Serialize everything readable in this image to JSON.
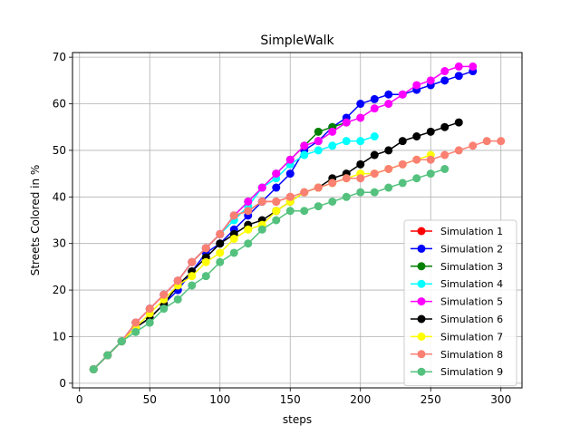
{
  "chart_data": {
    "type": "line",
    "title": "SimpleWalk",
    "xlabel": "steps",
    "ylabel": "Streets Colored in %",
    "xlim": [
      -5,
      315
    ],
    "ylim": [
      -1,
      71
    ],
    "xticks": [
      0,
      50,
      100,
      150,
      200,
      250,
      300
    ],
    "yticks": [
      0,
      10,
      20,
      30,
      40,
      50,
      60,
      70
    ],
    "grid": true,
    "legend_position": "lower right",
    "series": [
      {
        "name": "Simulation 1",
        "color": "#ff0000",
        "x": [
          10,
          20,
          30,
          40,
          50,
          60,
          70,
          80,
          90,
          100,
          110,
          120,
          130,
          140,
          150
        ],
        "y": [
          3,
          6,
          9,
          13,
          16,
          19,
          22,
          26,
          29,
          32,
          36,
          37,
          39,
          39,
          40
        ]
      },
      {
        "name": "Simulation 2",
        "color": "#0000ff",
        "x": [
          10,
          20,
          30,
          40,
          50,
          60,
          70,
          80,
          90,
          100,
          110,
          120,
          130,
          140,
          150,
          160,
          170,
          180,
          190,
          200,
          210,
          220,
          230,
          240,
          250,
          260,
          270,
          280
        ],
        "y": [
          3,
          6,
          9,
          12,
          14,
          17,
          20,
          24,
          28,
          30,
          33,
          36,
          39,
          42,
          45,
          50,
          52,
          55,
          57,
          60,
          61,
          62,
          62,
          63,
          64,
          65,
          66,
          67
        ]
      },
      {
        "name": "Simulation 3",
        "color": "#008000",
        "x": [
          10,
          20,
          30,
          40,
          50,
          60,
          70,
          80,
          90,
          100,
          110,
          120,
          130,
          140,
          150,
          160,
          170,
          180,
          190
        ],
        "y": [
          3,
          6,
          9,
          13,
          16,
          19,
          22,
          26,
          29,
          32,
          36,
          39,
          42,
          45,
          48,
          51,
          54,
          55,
          56
        ]
      },
      {
        "name": "Simulation 4",
        "color": "#00ffff",
        "x": [
          10,
          20,
          30,
          40,
          50,
          60,
          70,
          80,
          90,
          100,
          110,
          120,
          130,
          140,
          150,
          160,
          170,
          180,
          190,
          200,
          210
        ],
        "y": [
          3,
          6,
          9,
          13,
          16,
          19,
          22,
          26,
          29,
          32,
          35,
          38,
          42,
          44,
          47,
          49,
          50,
          51,
          52,
          52,
          53
        ]
      },
      {
        "name": "Simulation 5",
        "color": "#ff00ff",
        "x": [
          10,
          20,
          30,
          40,
          50,
          60,
          70,
          80,
          90,
          100,
          110,
          120,
          130,
          140,
          150,
          160,
          170,
          180,
          190,
          200,
          210,
          220,
          230,
          240,
          250,
          260,
          270,
          280
        ],
        "y": [
          3,
          6,
          9,
          13,
          16,
          19,
          22,
          26,
          29,
          32,
          36,
          39,
          42,
          45,
          48,
          51,
          52,
          54,
          56,
          57,
          59,
          60,
          62,
          64,
          65,
          67,
          68,
          68
        ]
      },
      {
        "name": "Simulation 6",
        "color": "#000000",
        "x": [
          10,
          20,
          30,
          40,
          50,
          60,
          70,
          80,
          90,
          100,
          110,
          120,
          130,
          140,
          150,
          160,
          170,
          180,
          190,
          200,
          210,
          220,
          230,
          240,
          250,
          260,
          270
        ],
        "y": [
          3,
          6,
          9,
          12,
          14,
          17,
          21,
          24,
          27,
          30,
          32,
          34,
          35,
          37,
          39,
          41,
          42,
          44,
          45,
          47,
          49,
          50,
          52,
          53,
          54,
          55,
          56
        ]
      },
      {
        "name": "Simulation 7",
        "color": "#ffff00",
        "x": [
          10,
          20,
          30,
          40,
          50,
          60,
          70,
          80,
          90,
          100,
          110,
          120,
          130,
          140,
          150,
          160,
          170,
          180,
          190,
          200,
          210,
          220,
          230,
          240,
          250
        ],
        "y": [
          3,
          6,
          9,
          12,
          15,
          18,
          21,
          23,
          26,
          28,
          31,
          33,
          34,
          37,
          39,
          41,
          42,
          43,
          44,
          45,
          45,
          46,
          47,
          48,
          49
        ]
      },
      {
        "name": "Simulation 8",
        "color": "#fa8072",
        "x": [
          10,
          20,
          30,
          40,
          50,
          60,
          70,
          80,
          90,
          100,
          110,
          120,
          130,
          140,
          150,
          160,
          170,
          180,
          190,
          200,
          210,
          220,
          230,
          240,
          250,
          260,
          270,
          280,
          290,
          300
        ],
        "y": [
          3,
          6,
          9,
          13,
          16,
          19,
          22,
          26,
          29,
          32,
          36,
          37,
          39,
          39,
          40,
          41,
          42,
          43,
          44,
          44,
          45,
          46,
          47,
          48,
          48,
          49,
          50,
          51,
          52,
          52
        ]
      },
      {
        "name": "Simulation 9",
        "color": "#54c17e",
        "x": [
          10,
          20,
          30,
          40,
          50,
          60,
          70,
          80,
          90,
          100,
          110,
          120,
          130,
          140,
          150,
          160,
          170,
          180,
          190,
          200,
          210,
          220,
          230,
          240,
          250,
          260
        ],
        "y": [
          3,
          6,
          9,
          11,
          13,
          16,
          18,
          21,
          23,
          26,
          28,
          30,
          33,
          35,
          37,
          37,
          38,
          39,
          40,
          41,
          41,
          42,
          43,
          44,
          45,
          46
        ]
      }
    ]
  }
}
